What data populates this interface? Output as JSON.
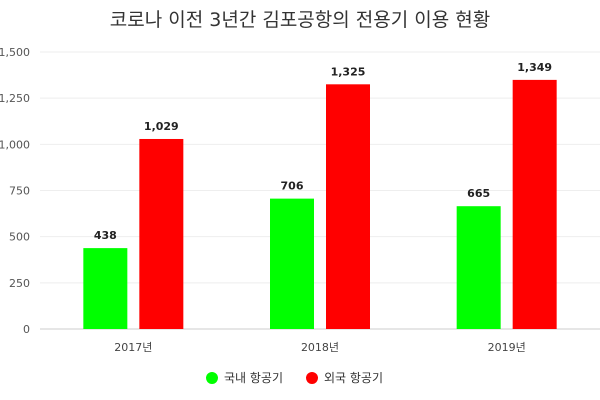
{
  "chart_data": {
    "type": "bar",
    "title": "코로나 이전 3년간 김포공항의 전용기 이용 현황",
    "categories": [
      "2017년",
      "2018년",
      "2019년"
    ],
    "yticks": [
      "0",
      "250",
      "500",
      "750",
      "1,000",
      "1,250",
      "1,500"
    ],
    "ylim": [
      0,
      1500
    ],
    "grid": true,
    "legend_position": "bottom",
    "series": [
      {
        "name": "국내 항공기",
        "color": "#00ff00",
        "values": [
          438,
          706,
          665
        ],
        "labels": [
          "438",
          "706",
          "665"
        ]
      },
      {
        "name": "외국 항공기",
        "color": "#ff0000",
        "values": [
          1029,
          1325,
          1349
        ],
        "labels": [
          "1,029",
          "1,325",
          "1,349"
        ]
      }
    ]
  }
}
